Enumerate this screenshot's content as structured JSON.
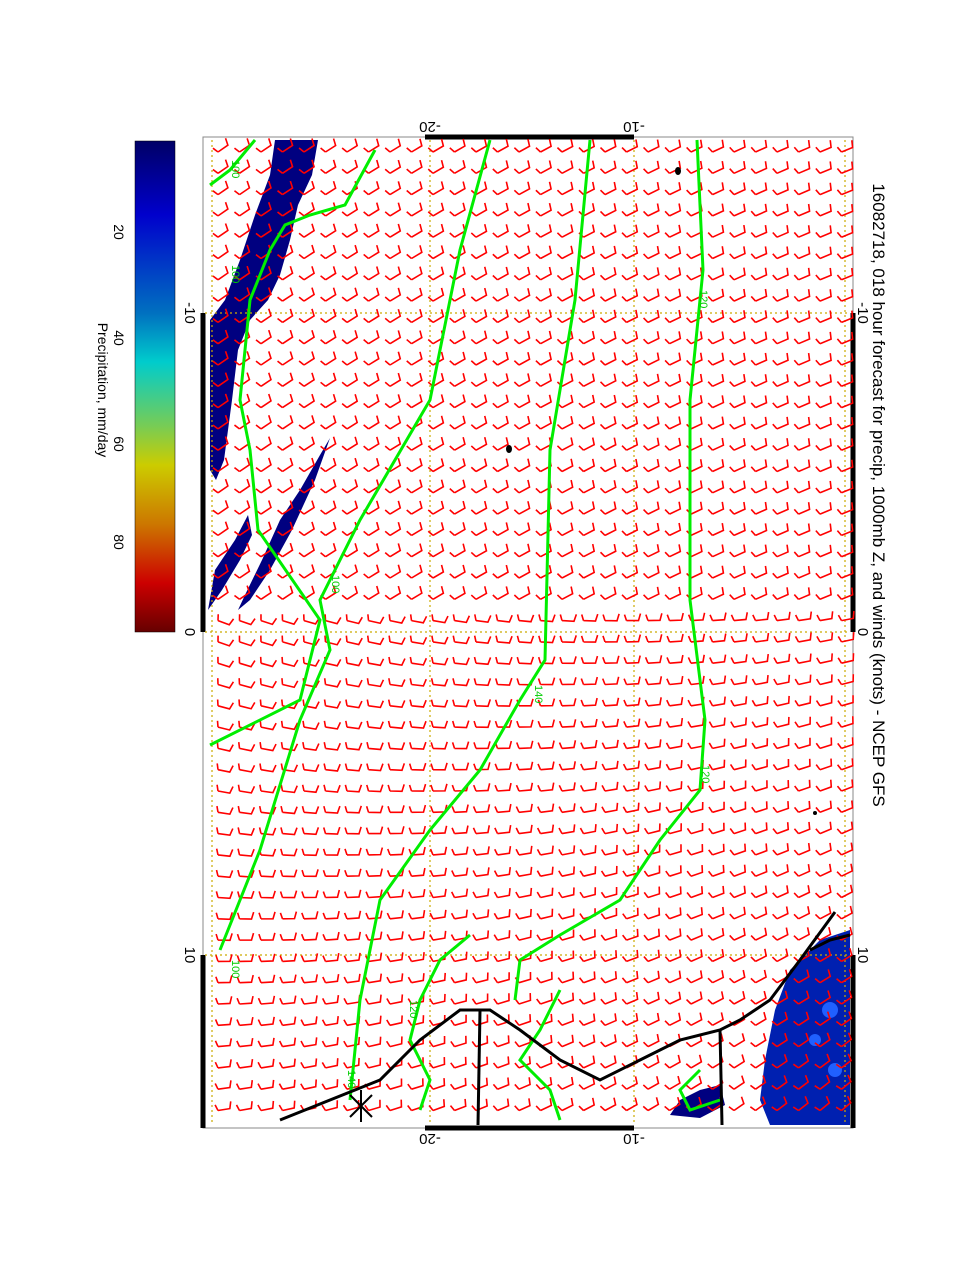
{
  "title": "16082718, 018 hour forecast for precip, 1000mb Z, and winds (knots) - NCEP GFS",
  "colorbar": {
    "label": "Precipitation, mm/day",
    "ticks": [
      "20",
      "40",
      "60",
      "80"
    ],
    "colors": [
      "#000080",
      "#0000cc",
      "#0080c0",
      "#00cccc",
      "#66cc66",
      "#cccc00",
      "#cc7700",
      "#cc0000",
      "#660000"
    ]
  },
  "axes": {
    "lat_ticks": [
      "-20",
      "-10"
    ],
    "lon_ticks": [
      "-10",
      "0",
      "10"
    ]
  },
  "contours": {
    "labels": [
      "100",
      "100",
      "100",
      "120",
      "120",
      "120",
      "140",
      "140",
      "100"
    ],
    "color": "#00ff00"
  },
  "colors": {
    "wind": "#ff0000",
    "grid": "#ccaa00",
    "coast": "#000000",
    "precip": "#000080"
  }
}
